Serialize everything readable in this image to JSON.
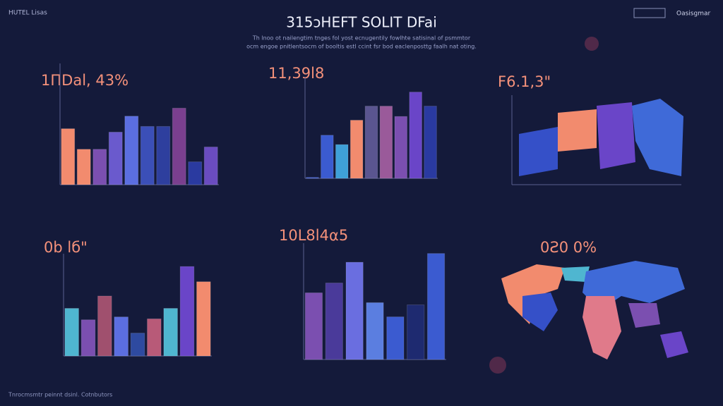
{
  "header": {
    "title": "315ɔHEFT SOLIT DFai",
    "subtitle": [
      "Th lnoo ot nailengtim tnges fol yost ecnugentily fowlhte satisinal of psmmtor",
      "ocm engoe pnitlentsocm of booltis estl ccint fsr bod eaclenposttg faalh nat oting."
    ],
    "brand_left": "HUTEL Lisas",
    "brand_right": "Oasisgmar"
  },
  "panels": [
    {
      "title": "F6.1,3\""
    },
    {
      "title": "0Ƨ0 0%"
    }
  ],
  "footer": "Tnrocmsmtr peinnt dsinl. Cotnbutors",
  "chart_data": [
    {
      "type": "bar",
      "title": "1ΠDal, 43%",
      "ylim": [
        0,
        100
      ],
      "values": [
        49,
        31,
        31,
        46,
        60,
        51,
        51,
        67,
        20,
        33
      ],
      "colors": [
        "#f28b6e",
        "#f28b6e",
        "#7b4fb0",
        "#6a5acd",
        "#5b6ee0",
        "#3b4fb8",
        "#2e3f9e",
        "#7a3f8f",
        "#2a3aa0",
        "#6a4cc0"
      ]
    },
    {
      "type": "bar",
      "title": "11,39l8",
      "ylim": [
        0,
        100
      ],
      "values": [
        1,
        46,
        36,
        62,
        77,
        77,
        66,
        92,
        77
      ],
      "colors": [
        "#3b5bd0",
        "#3b5bd0",
        "#3fa0d8",
        "#f28b6e",
        "#5a5590",
        "#9a5a9a",
        "#7b4fb0",
        "#6a45c8",
        "#2a3aa0"
      ]
    },
    {
      "type": "bar",
      "title": "0b lб\"",
      "ylim": [
        0,
        100
      ],
      "values": [
        50,
        38,
        63,
        41,
        24,
        39,
        50,
        94,
        78
      ],
      "colors": [
        "#4fb6d0",
        "#7b4fb0",
        "#a0506e",
        "#5b6ee0",
        "#2e4aa0",
        "#b85a78",
        "#4fb6d0",
        "#6a45c8",
        "#f28b6e"
      ]
    },
    {
      "type": "bar",
      "title": "10L8l4α5",
      "ylim": [
        0,
        100
      ],
      "values": [
        61,
        70,
        89,
        52,
        39,
        50,
        97
      ],
      "colors": [
        "#7b4fb0",
        "#4a3a9a",
        "#6a6ee0",
        "#5b7ee0",
        "#3b5bd0",
        "#1e2a70",
        "#3b5bd0"
      ]
    }
  ]
}
